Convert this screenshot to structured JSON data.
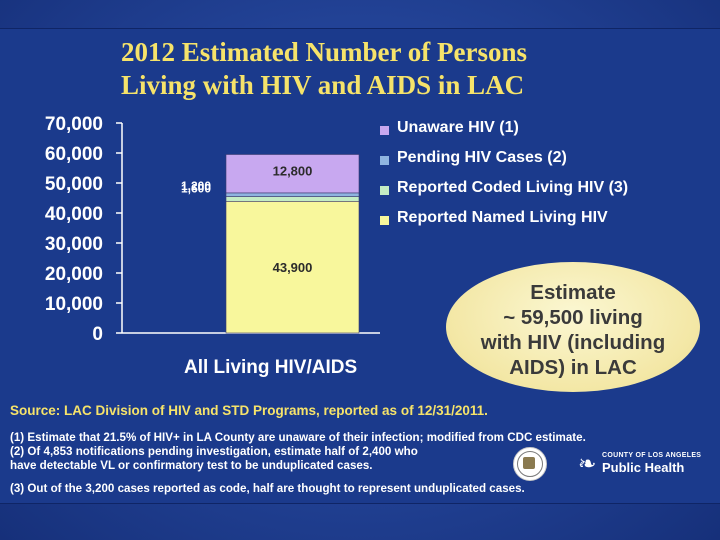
{
  "title_lines": [
    "2012 Estimated Number of Persons",
    "Living with HIV and AIDS in LAC"
  ],
  "chart_data": {
    "type": "bar",
    "stacked": true,
    "categories": [
      "All Living HIV/AIDS"
    ],
    "series": [
      {
        "name": "Reported Named Living HIV",
        "values": [
          43900
        ],
        "label": "43,900",
        "color": "#f8f79c"
      },
      {
        "name": "Reported Coded Living HIV (3)",
        "values": [
          1600
        ],
        "label": "1,600",
        "color": "#c4ecc4"
      },
      {
        "name": "Pending HIV Cases (2)",
        "values": [
          1200
        ],
        "label": "1,200",
        "color": "#8fb4e0"
      },
      {
        "name": "Unaware HIV (1)",
        "values": [
          12800
        ],
        "label": "12,800",
        "color": "#c8a8f0"
      }
    ],
    "legend_order": [
      "Unaware HIV (1)",
      "Pending HIV Cases (2)",
      "Reported Coded Living HIV (3)",
      "Reported Named Living HIV"
    ],
    "y_ticks": [
      "70,000",
      "60,000",
      "50,000",
      "40,000",
      "30,000",
      "20,000",
      "10,000",
      "0"
    ],
    "ylim": [
      0,
      70000
    ],
    "legend_position": "top-right",
    "grid": false
  },
  "callout_lines": [
    "Estimate",
    "~ 59,500 living",
    "with HIV (including",
    "AIDS) in LAC"
  ],
  "source": "Source: LAC Division of HIV and STD Programs, reported as of 12/31/2011.",
  "notes": [
    "(1) Estimate that 21.5% of HIV+ in LA County are unaware of their infection; modified from CDC estimate.",
    "(2) Of 4,853 notifications pending investigation, estimate half of 2,400 who",
    "have detectable VL or confirmatory test to be unduplicated cases.",
    "(3) Out of the 3,200 cases reported as code, half are thought to represent unduplicated cases."
  ],
  "logo": {
    "top": "COUNTY OF LOS ANGELES",
    "main": "Public Health"
  }
}
